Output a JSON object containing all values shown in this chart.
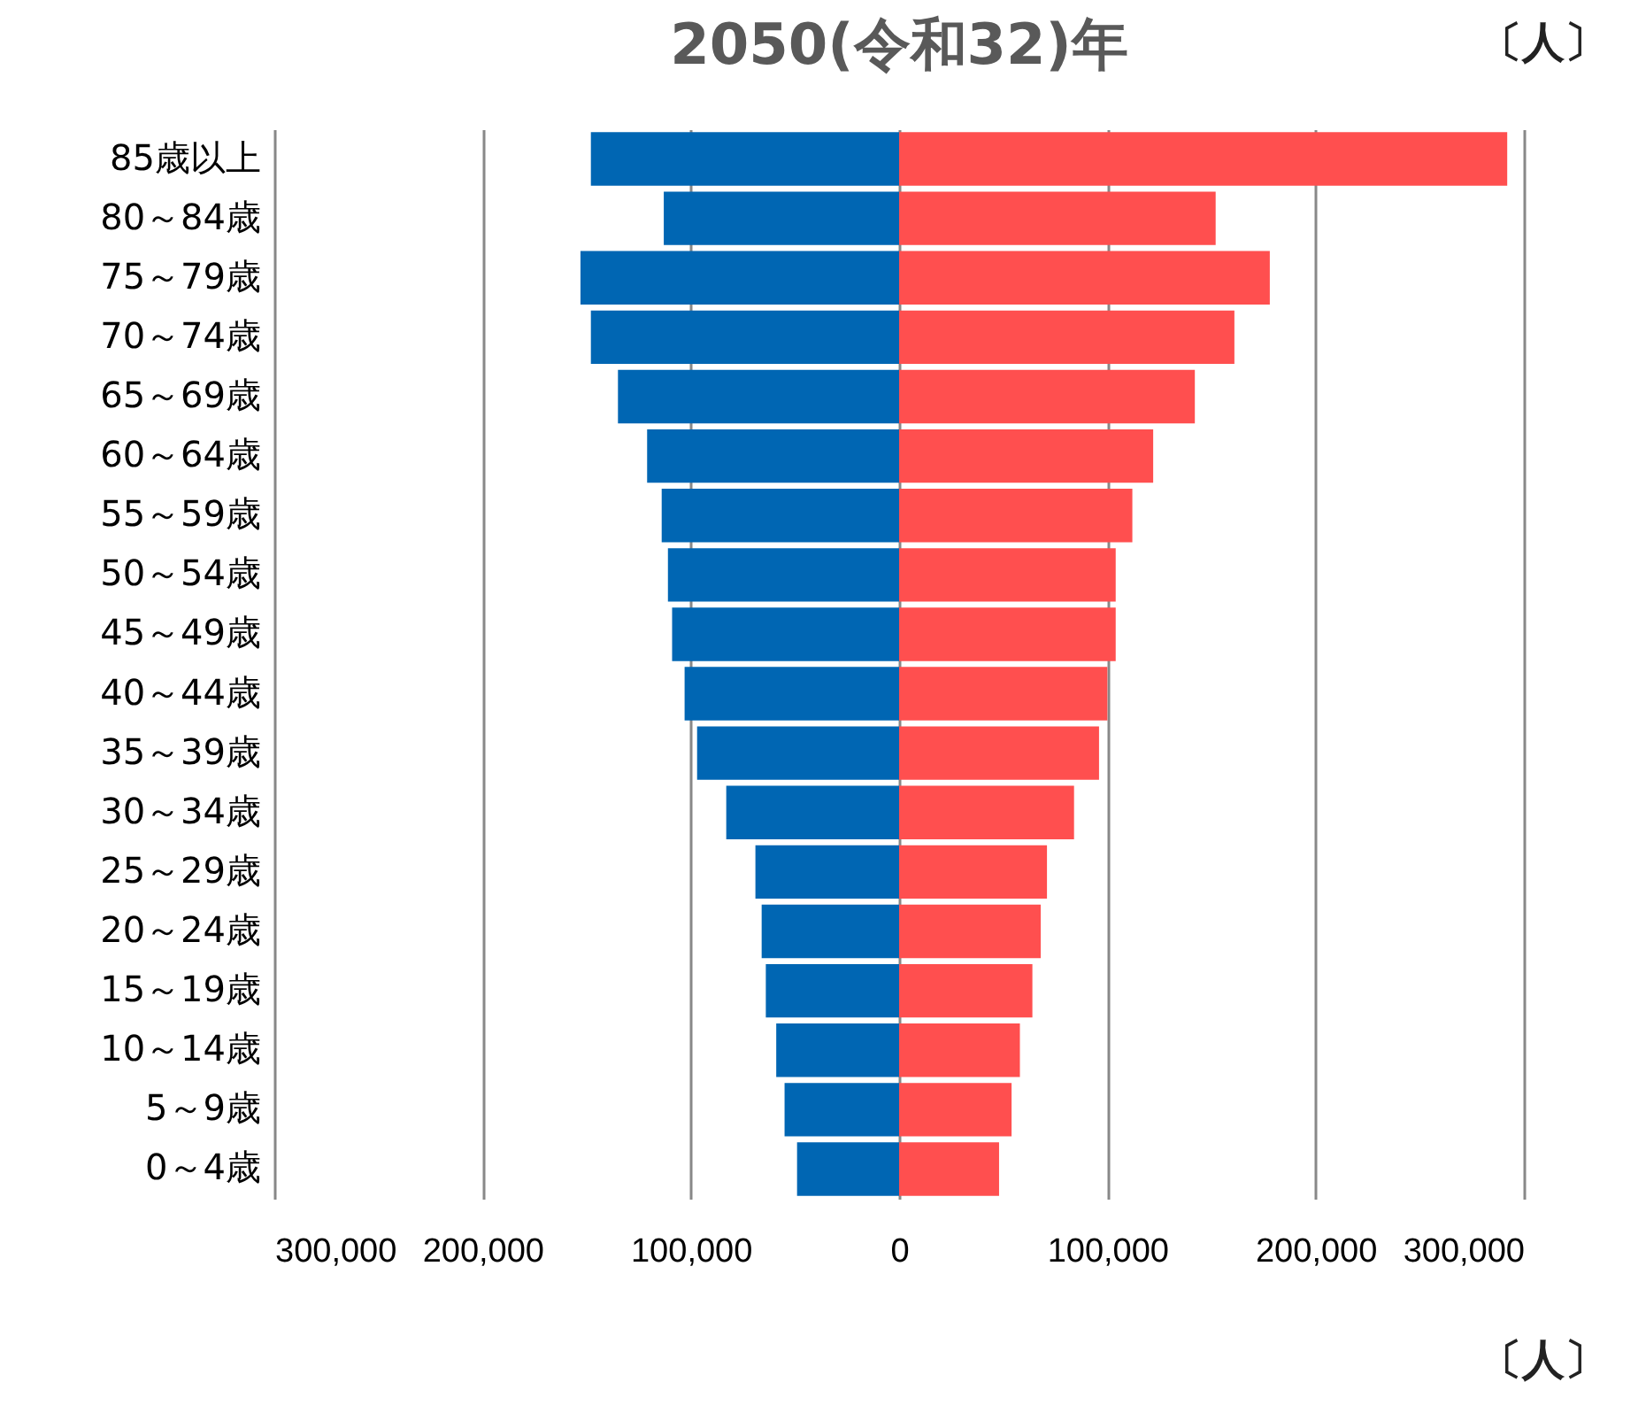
{
  "chart_data": {
    "type": "bar",
    "orientation": "horizontal",
    "title": "2050(令和32)年",
    "categories": [
      "85歳以上",
      "80～84歳",
      "75～79歳",
      "70～74歳",
      "65～69歳",
      "60～64歳",
      "55～59歳",
      "50～54歳",
      "45～49歳",
      "40～44歳",
      "35～39歳",
      "30～34歳",
      "25～29歳",
      "20～24歳",
      "15～19歳",
      "10～14歳",
      "5～9歳",
      "0～4歳"
    ],
    "series": [
      {
        "color": "#0066b3",
        "values": [
          -148000,
          -113000,
          -153000,
          -148000,
          -135000,
          -121000,
          -114000,
          -111000,
          -109000,
          -103000,
          -97000,
          -83000,
          -69000,
          -66000,
          -64000,
          -59000,
          -55000,
          -49000
        ]
      },
      {
        "color": "#ff4f4f",
        "values": [
          292000,
          152000,
          178000,
          161000,
          142000,
          122000,
          112000,
          104000,
          104000,
          100000,
          96000,
          84000,
          71000,
          68000,
          64000,
          58000,
          54000,
          48000
        ]
      }
    ],
    "xlim": [
      -300000,
      300000
    ],
    "xticks": [
      {
        "value": -300000,
        "label": "300,000"
      },
      {
        "value": -200000,
        "label": "200,000"
      },
      {
        "value": -100000,
        "label": "100,000"
      },
      0,
      {
        "value": 100000,
        "label": "100,000"
      },
      {
        "value": 200000,
        "label": "200,000"
      },
      {
        "value": 300000,
        "label": "300,000"
      }
    ],
    "grid": "x",
    "stacked": true,
    "legend": false,
    "annotations": [
      "〔人〕",
      "〔人〕"
    ]
  }
}
